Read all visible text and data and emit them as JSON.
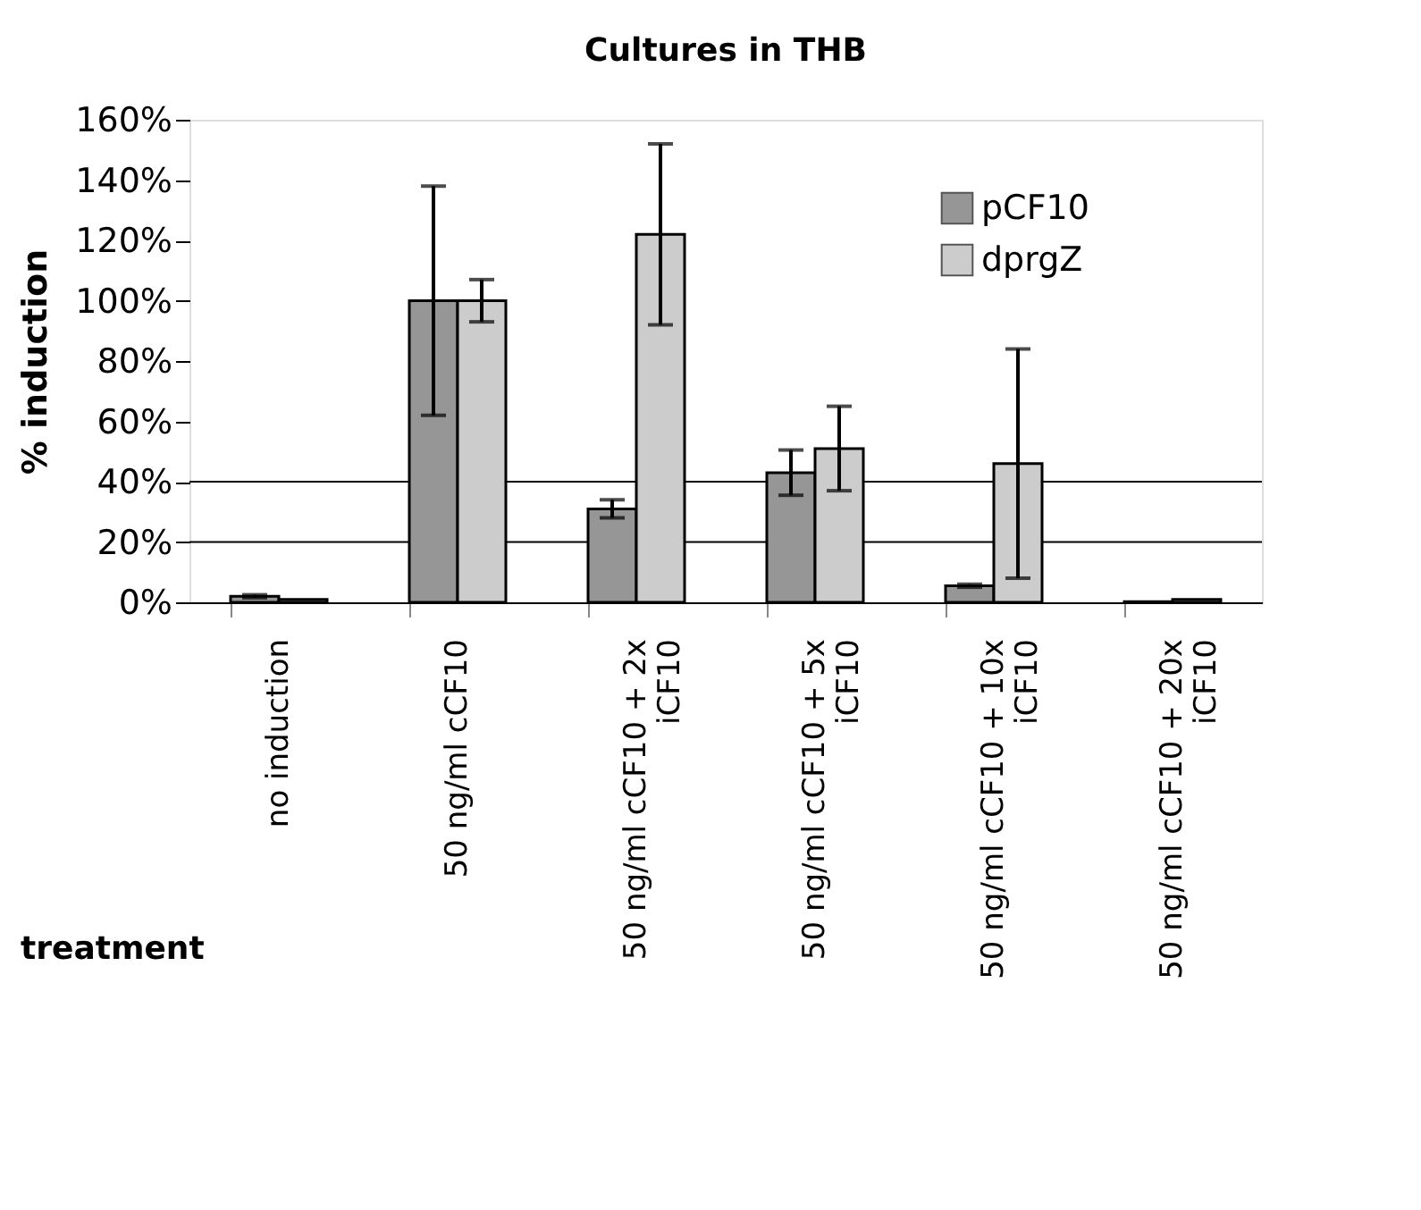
{
  "chart_data": {
    "type": "bar",
    "title": "Cultures in THB",
    "xlabel": "treatment",
    "ylabel": "% induction",
    "categories": [
      "no induction",
      "50 ng/ml cCF10",
      "50 ng/ml cCF10 + 2x iCF10",
      "50 ng/ml cCF10 + 5x iCF10",
      "50 ng/ml cCF10 + 10x iCF10",
      "50 ng/ml cCF10 + 20x iCF10"
    ],
    "series": [
      {
        "name": "pCF10",
        "color": "#969696",
        "values": [
          2,
          100,
          31,
          43,
          5.5,
          0.2
        ],
        "errors": [
          0.5,
          38,
          3,
          7.5,
          0.5,
          null
        ]
      },
      {
        "name": "dprgZ",
        "color": "#cccccc",
        "values": [
          1,
          100,
          122,
          51,
          46,
          1
        ],
        "errors": [
          null,
          7,
          30,
          14,
          38,
          null
        ]
      }
    ],
    "ylim": [
      0,
      160
    ],
    "yticks": [
      {
        "value": 0,
        "label": "0%"
      },
      {
        "value": 20,
        "label": "20%"
      },
      {
        "value": 40,
        "label": "40%"
      },
      {
        "value": 60,
        "label": "60%"
      },
      {
        "value": 80,
        "label": "80%"
      },
      {
        "value": 100,
        "label": "100%"
      },
      {
        "value": 120,
        "label": "120%"
      },
      {
        "value": 140,
        "label": "140%"
      },
      {
        "value": 160,
        "label": "160%"
      }
    ],
    "ref_lines": [
      {
        "axis": "y",
        "value": 20,
        "label": null,
        "color": "#000000"
      },
      {
        "axis": "y",
        "value": 40,
        "label": null,
        "color": "#000000"
      }
    ],
    "legend": "top right"
  }
}
